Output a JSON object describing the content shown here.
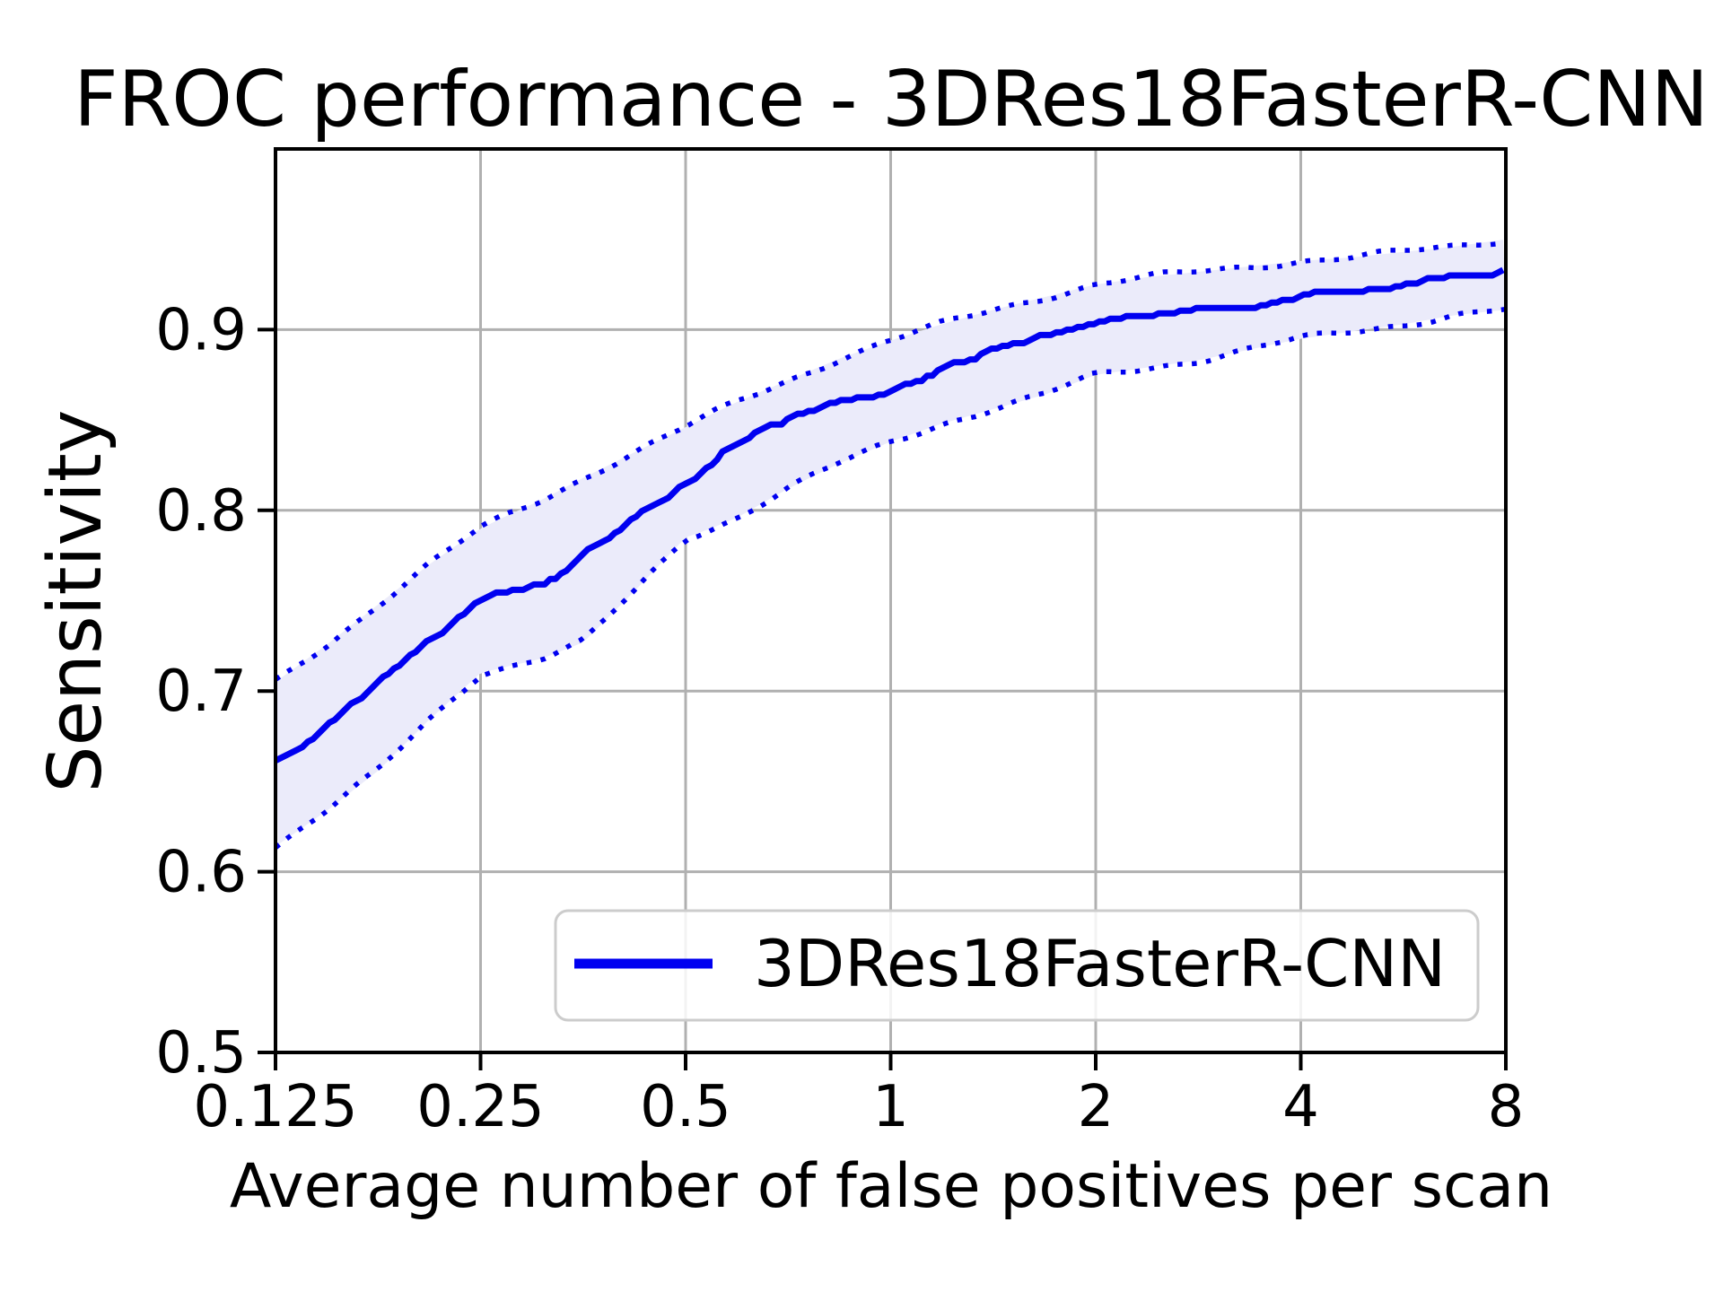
{
  "page": {
    "background": "#ffffff"
  },
  "chart_data": {
    "type": "line",
    "title": "FROC performance - 3DRes18FasterR-CNN",
    "xlabel": "Average number of false positives per scan",
    "ylabel": "Sensitivity",
    "x_scale": "log2",
    "xlim": [
      0.125,
      8
    ],
    "ylim": [
      0.5,
      1.0
    ],
    "x_ticks": [
      0.125,
      0.25,
      0.5,
      1,
      2,
      4,
      8
    ],
    "x_tick_labels": [
      "0.125",
      "0.25",
      "0.5",
      "1",
      "2",
      "4",
      "8"
    ],
    "y_ticks": [
      0.5,
      0.6,
      0.7,
      0.8,
      0.9
    ],
    "y_tick_labels": [
      "0.5",
      "0.6",
      "0.7",
      "0.8",
      "0.9"
    ],
    "grid": true,
    "grid_color": "#b0b0b0",
    "line_color": "#0000f0",
    "band_fill_color": "#ebebfa",
    "legend": {
      "position": "lower right",
      "entries": [
        {
          "label": "3DRes18FasterR-CNN",
          "color": "#0000f0",
          "style": "solid"
        }
      ]
    },
    "series": [
      {
        "name": "3DRes18FasterR-CNN",
        "style": "solid",
        "x": [
          0.125,
          0.149,
          0.177,
          0.21,
          0.25,
          0.277,
          0.308,
          0.354,
          0.42,
          0.5,
          0.545,
          0.595,
          0.707,
          0.841,
          1.0,
          1.189,
          1.414,
          1.682,
          2.0,
          2.378,
          2.828,
          3.364,
          4.0,
          4.757,
          5.657,
          6.727,
          8.0
        ],
        "y": [
          0.662,
          0.681,
          0.703,
          0.726,
          0.748,
          0.755,
          0.758,
          0.776,
          0.796,
          0.816,
          0.826,
          0.838,
          0.851,
          0.86,
          0.867,
          0.879,
          0.887,
          0.895,
          0.902,
          0.906,
          0.91,
          0.914,
          0.918,
          0.921,
          0.924,
          0.928,
          0.931
        ]
      },
      {
        "name": "upper confidence bound",
        "style": "dotted",
        "x": [
          0.125,
          0.149,
          0.177,
          0.21,
          0.25,
          0.277,
          0.308,
          0.354,
          0.42,
          0.5,
          0.545,
          0.595,
          0.707,
          0.841,
          1.0,
          1.189,
          1.414,
          1.682,
          2.0,
          2.378,
          2.828,
          3.364,
          4.0,
          4.757,
          5.657,
          6.727,
          8.0
        ],
        "y": [
          0.705,
          0.726,
          0.748,
          0.77,
          0.79,
          0.798,
          0.806,
          0.818,
          0.832,
          0.846,
          0.853,
          0.86,
          0.872,
          0.884,
          0.894,
          0.903,
          0.911,
          0.918,
          0.925,
          0.929,
          0.932,
          0.935,
          0.938,
          0.94,
          0.943,
          0.946,
          0.95
        ]
      },
      {
        "name": "lower confidence bound",
        "style": "dotted",
        "x": [
          0.125,
          0.149,
          0.177,
          0.21,
          0.25,
          0.277,
          0.308,
          0.354,
          0.42,
          0.5,
          0.545,
          0.595,
          0.707,
          0.841,
          1.0,
          1.189,
          1.414,
          1.682,
          2.0,
          2.378,
          2.828,
          3.364,
          4.0,
          4.757,
          5.657,
          6.727,
          8.0
        ],
        "y": [
          0.614,
          0.634,
          0.656,
          0.684,
          0.71,
          0.714,
          0.718,
          0.727,
          0.755,
          0.785,
          0.79,
          0.796,
          0.812,
          0.826,
          0.838,
          0.848,
          0.856,
          0.864,
          0.875,
          0.879,
          0.883,
          0.889,
          0.895,
          0.899,
          0.903,
          0.908,
          0.911
        ]
      }
    ]
  }
}
